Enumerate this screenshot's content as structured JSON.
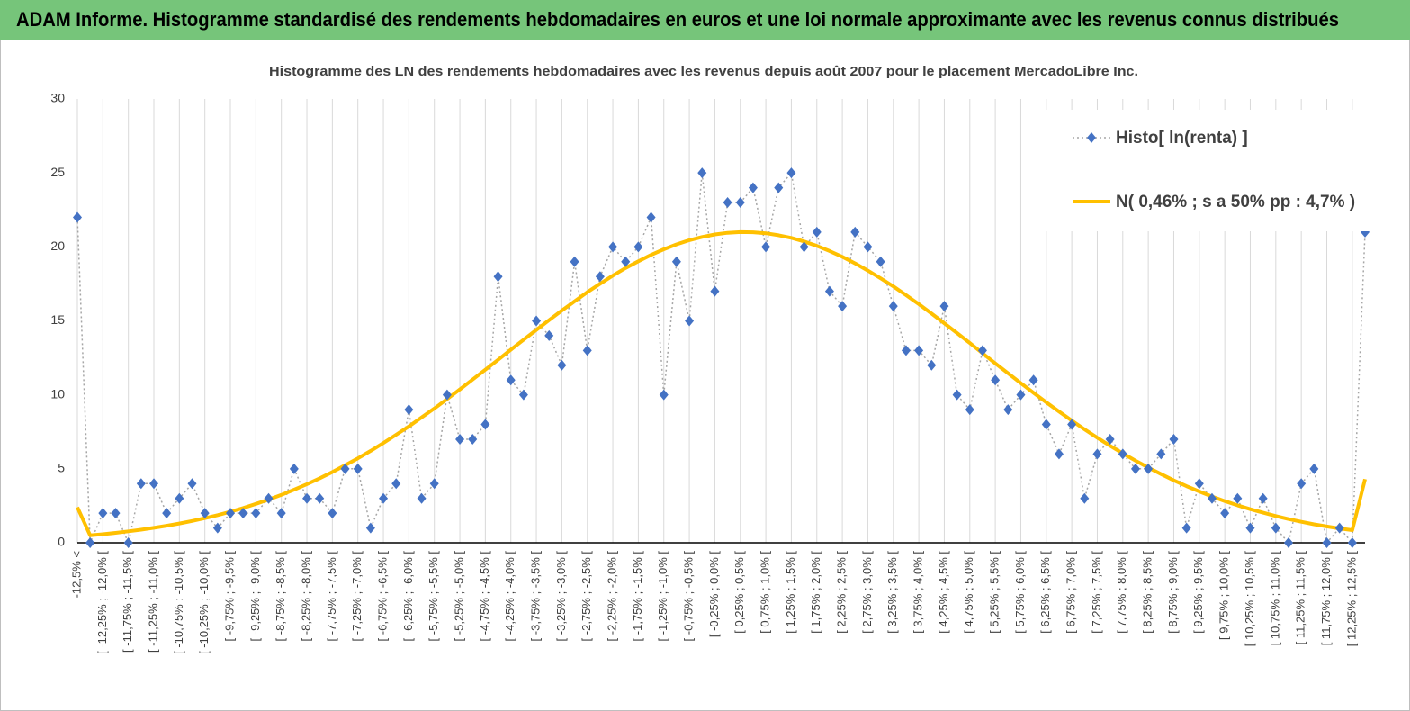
{
  "header": {
    "title": "ADAM Informe. Histogramme standardisé des rendements hebdomadaires en euros et une loi normale approximante avec les revenus connus distribués"
  },
  "chart_data": {
    "type": "line",
    "title": "Histogramme  des LN des rendements hebdomadaires avec les revenus depuis août 2007  pour le placement MercadoLibre Inc.",
    "categories": [
      "-12,5% <",
      null,
      "[ -12,25% ; -12,0% [",
      null,
      "[ -11,75% ; -11,5% [",
      null,
      "[ -11,25% ; -11,0% [",
      null,
      "[ -10,75% ; -10,5% [",
      null,
      "[ -10,25% ; -10,0% [",
      null,
      "[ -9,75% ; -9,5% [",
      null,
      "[ -9,25% ; -9,0% [",
      null,
      "[ -8,75% ; -8,5% [",
      null,
      "[ -8,25% ; -8,0% [",
      null,
      "[ -7,75% ; -7,5% [",
      null,
      "[ -7,25% ; -7,0% [",
      null,
      "[ -6,75% ; -6,5% [",
      null,
      "[ -6,25% ; -6,0% [",
      null,
      "[ -5,75% ; -5,5% [",
      null,
      "[ -5,25% ; -5,0% [",
      null,
      "[ -4,75% ; -4,5% [",
      null,
      "[ -4,25% ; -4,0% [",
      null,
      "[ -3,75% ; -3,5% [",
      null,
      "[ -3,25% ; -3,0% [",
      null,
      "[ -2,75% ; -2,5% [",
      null,
      "[ -2,25% ; -2,0% [",
      null,
      "[ -1,75% ; -1,5% [",
      null,
      "[ -1,25% ; -1,0% [",
      null,
      "[ -0,75% ; -0,5% [",
      null,
      "[ -0,25% ; 0,0% [",
      null,
      "[ 0,25% ; 0,5% [",
      null,
      "[ 0,75% ; 1,0% [",
      null,
      "[ 1,25% ; 1,5% [",
      null,
      "[ 1,75% ; 2,0% [",
      null,
      "[ 2,25% ; 2,5% [",
      null,
      "[ 2,75% ; 3,0% [",
      null,
      "[ 3,25% ; 3,5% [",
      null,
      "[ 3,75% ; 4,0% [",
      null,
      "[ 4,25% ; 4,5% [",
      null,
      "[ 4,75% ; 5,0% [",
      null,
      "[ 5,25% ; 5,5% [",
      null,
      "[ 5,75% ; 6,0% [",
      null,
      "[ 6,25% ; 6,5% [",
      null,
      "[ 6,75% ; 7,0% [",
      null,
      "[ 7,25% ; 7,5% [",
      null,
      "[ 7,75% ; 8,0% [",
      null,
      "[ 8,25% ; 8,5% [",
      null,
      "[ 8,75% ; 9,0% [",
      null,
      "[ 9,25% ; 9,5% [",
      null,
      "[ 9,75% ; 10,0% [",
      null,
      "[ 10,25% ; 10,5% [",
      null,
      "[ 10,75% ; 11,0% [",
      null,
      "[ 11,25% ; 11,5% [",
      null,
      "[ 11,75% ; 12,0% [",
      null,
      "[ 12,25% ; 12,5% [",
      null
    ],
    "series": [
      {
        "name": "Histo[ ln(renta) ]",
        "color": "#4472c4",
        "line_color": "#a6a6a6",
        "values": [
          22,
          0,
          2,
          2,
          0,
          4,
          4,
          2,
          3,
          4,
          2,
          1,
          2,
          2,
          2,
          3,
          2,
          5,
          3,
          3,
          2,
          5,
          5,
          1,
          3,
          4,
          9,
          3,
          4,
          10,
          7,
          7,
          8,
          18,
          11,
          10,
          15,
          14,
          12,
          19,
          13,
          18,
          20,
          19,
          20,
          22,
          10,
          19,
          15,
          25,
          17,
          23,
          23,
          24,
          20,
          24,
          25,
          20,
          21,
          17,
          16,
          21,
          20,
          19,
          16,
          13,
          13,
          12,
          16,
          10,
          9,
          13,
          11,
          9,
          10,
          11,
          8,
          6,
          8,
          3,
          6,
          7,
          6,
          5,
          5,
          6,
          7,
          1,
          4,
          3,
          2,
          3,
          1,
          3,
          1,
          0,
          4,
          5,
          0,
          1,
          0,
          21
        ]
      },
      {
        "name": "N( 0,46% ; s a 50% pp : 4,7% )",
        "color": "#ffc000",
        "values": [
          2.4,
          0.5,
          0.58,
          0.67,
          0.77,
          0.88,
          1.01,
          1.15,
          1.3,
          1.47,
          1.66,
          1.87,
          2.1,
          2.35,
          2.63,
          2.92,
          3.24,
          3.59,
          3.96,
          4.36,
          4.78,
          5.24,
          5.71,
          6.21,
          6.74,
          7.3,
          7.87,
          8.47,
          9.08,
          9.72,
          10.37,
          11.03,
          11.7,
          12.37,
          13.05,
          13.73,
          14.39,
          15.05,
          15.7,
          16.32,
          16.94,
          17.51,
          18.06,
          18.57,
          19.03,
          19.46,
          19.84,
          20.17,
          20.45,
          20.67,
          20.84,
          20.95,
          21,
          20.99,
          20.92,
          20.79,
          20.61,
          20.37,
          20.07,
          19.72,
          19.33,
          18.89,
          18.4,
          17.88,
          17.33,
          16.74,
          16.13,
          15.49,
          14.84,
          14.18,
          13.5,
          12.81,
          12.13,
          11.46,
          10.79,
          10.14,
          9.49,
          8.87,
          8.26,
          7.67,
          7.1,
          6.56,
          6.04,
          5.55,
          5.08,
          4.64,
          4.22,
          3.83,
          3.47,
          3.13,
          2.82,
          2.53,
          2.27,
          2.03,
          1.81,
          1.6,
          1.42,
          1.25,
          1.1,
          0.97,
          0.85,
          4.3
        ]
      }
    ],
    "ylim": [
      0,
      30
    ],
    "yticks": [
      0,
      5,
      10,
      15,
      20,
      25,
      30
    ],
    "xgrid": true,
    "legend": "upper right"
  }
}
